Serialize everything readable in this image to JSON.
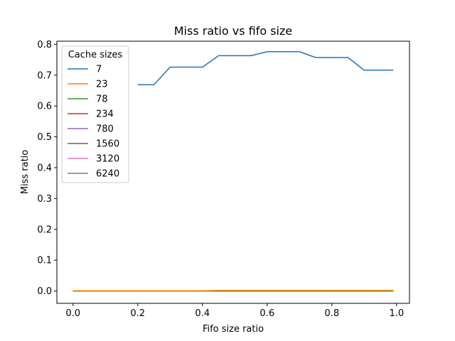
{
  "chart_data": {
    "type": "line",
    "title": "Miss ratio vs fifo size",
    "xlabel": "Fifo size ratio",
    "ylabel": "Miss ratio",
    "xlim": [
      -0.05,
      1.04
    ],
    "ylim": [
      -0.04,
      0.81
    ],
    "xticks": [
      "0.0",
      "0.2",
      "0.4",
      "0.6",
      "0.8",
      "1.0"
    ],
    "yticks": [
      "0.0",
      "0.1",
      "0.2",
      "0.3",
      "0.4",
      "0.5",
      "0.6",
      "0.7",
      "0.8"
    ],
    "grid": false,
    "legend": {
      "title": "Cache sizes",
      "placement": "upper-left"
    },
    "x": [
      0.0,
      0.05,
      0.1,
      0.15,
      0.2,
      0.25,
      0.3,
      0.35,
      0.4,
      0.45,
      0.5,
      0.55,
      0.6,
      0.65,
      0.7,
      0.75,
      0.8,
      0.85,
      0.9,
      0.95,
      0.99
    ],
    "series": [
      {
        "name": "7",
        "color": "#1f77b4",
        "values": [
          null,
          null,
          null,
          null,
          0.669,
          0.669,
          0.726,
          0.726,
          0.726,
          0.763,
          0.763,
          0.763,
          0.776,
          0.776,
          0.776,
          0.757,
          0.757,
          0.757,
          0.716,
          0.716,
          0.716
        ]
      },
      {
        "name": "23",
        "color": "#ff7f0e",
        "values": [
          0.001,
          0.001,
          0.001,
          0.001,
          0.001,
          0.001,
          0.001,
          0.001,
          0.001,
          0.002,
          0.002,
          0.002,
          0.002,
          0.002,
          0.002,
          0.002,
          0.002,
          0.002,
          0.002,
          0.002,
          0.002
        ]
      },
      {
        "name": "78",
        "color": "#2ca02c",
        "values": [
          0.0,
          0.0,
          0.0,
          0.0,
          0.0,
          0.0,
          0.0,
          0.0,
          0.0,
          0.0,
          0.0,
          0.0,
          0.0,
          0.0,
          0.0,
          0.0,
          0.0,
          0.0,
          0.0,
          0.0,
          0.0
        ]
      },
      {
        "name": "234",
        "color": "#d62728",
        "values": [
          0.0,
          0.0,
          0.0,
          0.0,
          0.0,
          0.0,
          0.0,
          0.0,
          0.0,
          0.0,
          0.0,
          0.0,
          0.0,
          0.0,
          0.0,
          0.0,
          0.0,
          0.0,
          0.0,
          0.0,
          0.0
        ]
      },
      {
        "name": "780",
        "color": "#9467bd",
        "values": [
          0.0,
          0.0,
          0.0,
          0.0,
          0.0,
          0.0,
          0.0,
          0.0,
          0.0,
          0.0,
          0.0,
          0.0,
          0.0,
          0.0,
          0.0,
          0.0,
          0.0,
          0.0,
          0.0,
          0.0,
          0.0
        ]
      },
      {
        "name": "1560",
        "color": "#8c564b",
        "values": [
          0.0,
          0.0,
          0.0,
          0.0,
          0.0,
          0.0,
          0.0,
          0.0,
          0.0,
          0.0,
          0.0,
          0.0,
          0.0,
          0.0,
          0.0,
          0.0,
          0.0,
          0.0,
          0.0,
          0.0,
          0.0
        ]
      },
      {
        "name": "3120",
        "color": "#e377c2",
        "values": [
          0.0,
          0.0,
          0.0,
          0.0,
          0.0,
          0.0,
          0.0,
          0.0,
          0.0,
          0.0,
          0.0,
          0.0,
          0.0,
          0.0,
          0.0,
          0.0,
          0.0,
          0.0,
          0.0,
          0.0,
          0.0
        ]
      },
      {
        "name": "6240",
        "color": "#7f7f7f",
        "values": [
          0.0,
          0.0,
          0.0,
          0.0,
          0.0,
          0.0,
          0.0,
          0.0,
          0.0,
          0.0,
          0.0,
          0.0,
          0.0,
          0.0,
          0.0,
          0.0,
          0.0,
          0.0,
          0.0,
          0.0,
          0.0
        ]
      }
    ]
  }
}
